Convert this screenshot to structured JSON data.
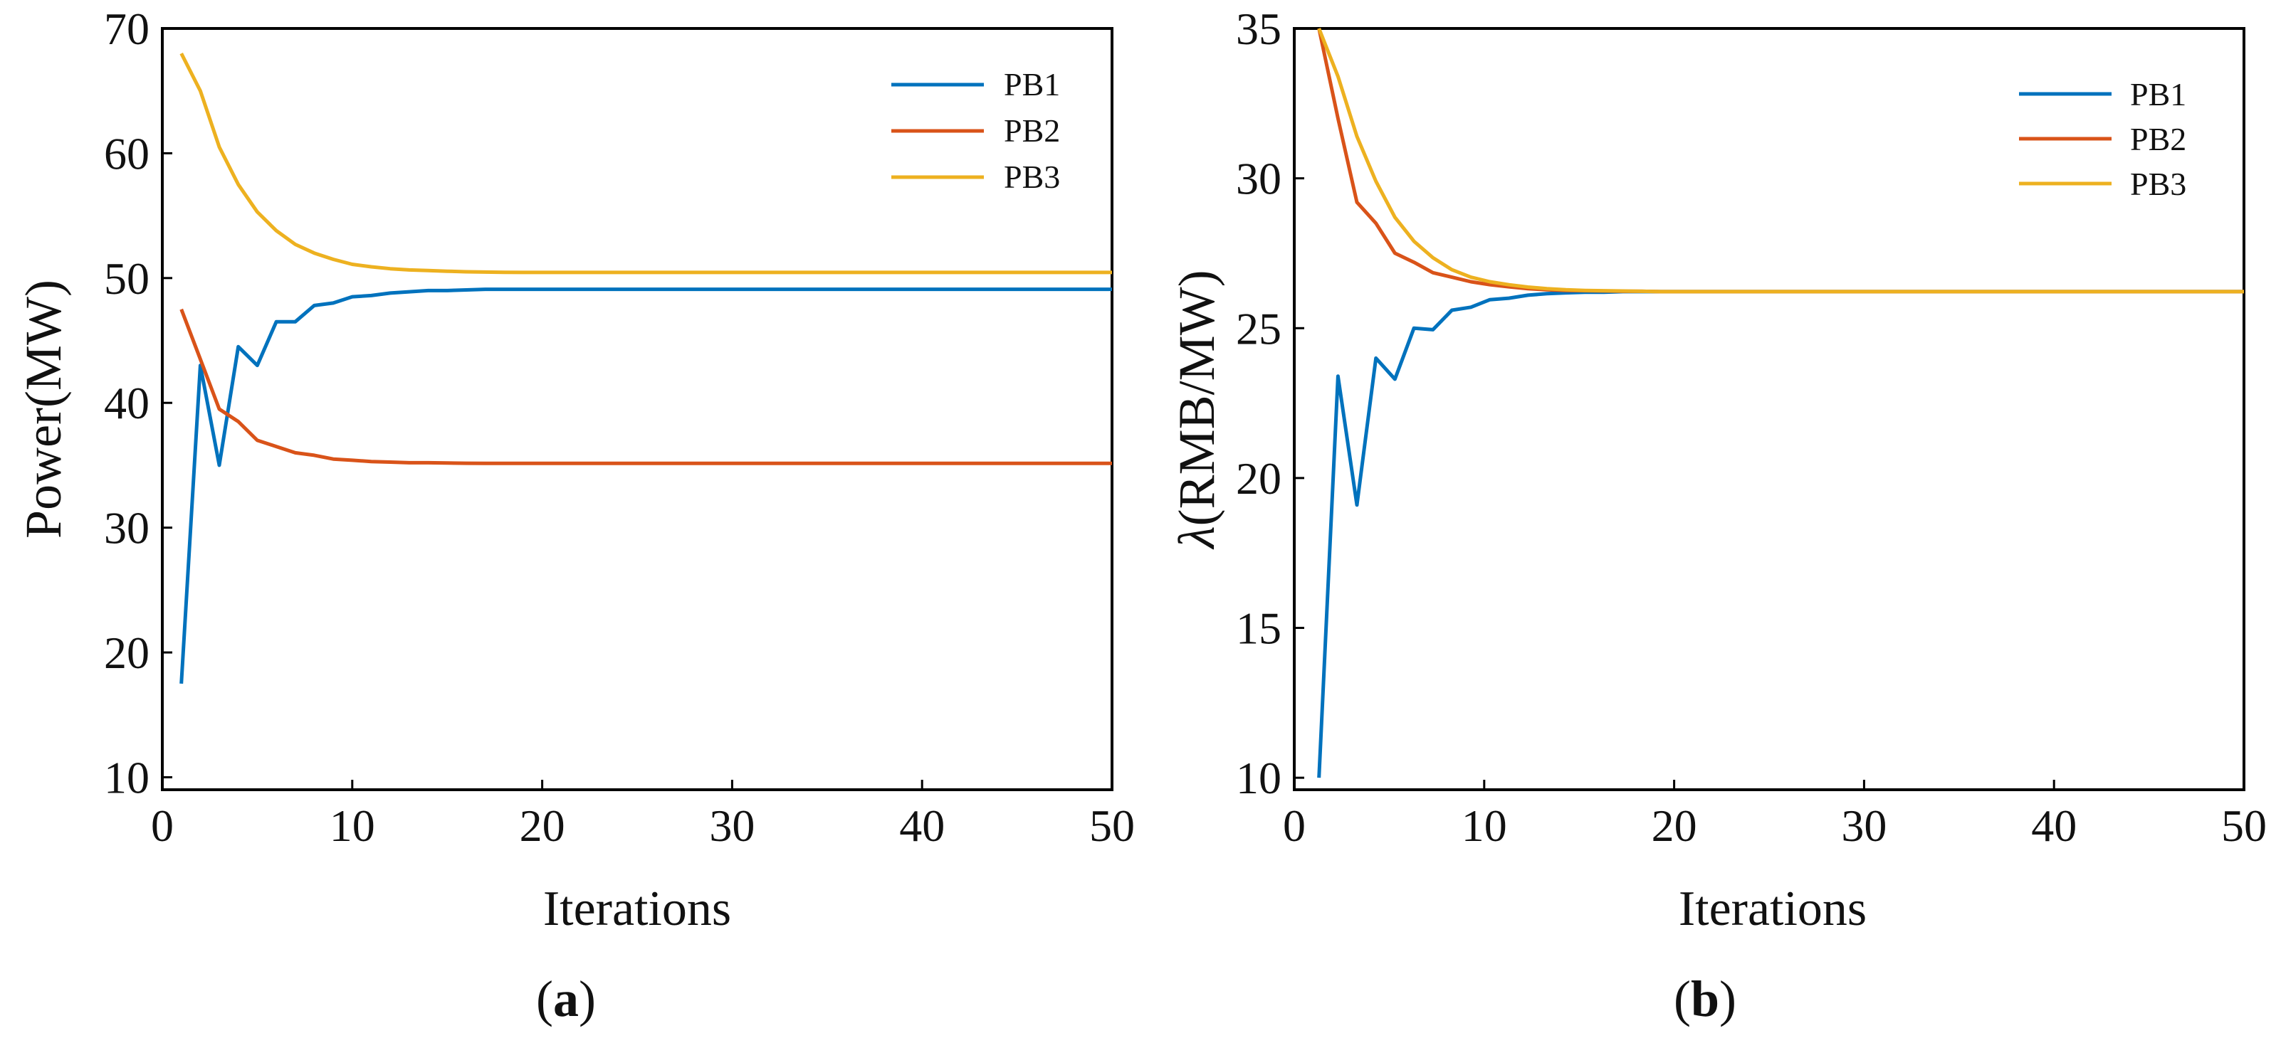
{
  "colors": {
    "series_1": "#0072BD",
    "series_2": "#D95319",
    "series_3": "#EDB120",
    "axis": "#000000"
  },
  "chart_data": [
    {
      "panel_label_paren_open": "(",
      "panel_label": "a",
      "panel_label_paren_close": ")",
      "type": "line",
      "title": "",
      "xlabel": "Iterations",
      "ylabel": "Power(MW)",
      "xlim": [
        0,
        50
      ],
      "ylim": [
        9,
        70
      ],
      "xticks": [
        0,
        10,
        20,
        30,
        40,
        50
      ],
      "yticks": [
        10,
        20,
        30,
        40,
        50,
        60,
        70
      ],
      "grid": false,
      "legend_position": "top-right",
      "series": [
        {
          "name": "PB1",
          "color": "#0072BD",
          "x": [
            1,
            2,
            3,
            4,
            5,
            6,
            7,
            8,
            9,
            10,
            11,
            12,
            13,
            14,
            15,
            16,
            17,
            18,
            19,
            20,
            30,
            40,
            50
          ],
          "y": [
            17.5,
            43,
            35,
            44.5,
            43,
            46.5,
            46.5,
            47.8,
            48,
            48.5,
            48.6,
            48.8,
            48.9,
            49,
            49,
            49.05,
            49.1,
            49.1,
            49.1,
            49.1,
            49.1,
            49.1,
            49.1
          ]
        },
        {
          "name": "PB2",
          "color": "#D95319",
          "x": [
            1,
            2,
            3,
            4,
            5,
            6,
            7,
            8,
            9,
            10,
            11,
            12,
            13,
            14,
            15,
            16,
            17,
            18,
            19,
            20,
            30,
            40,
            50
          ],
          "y": [
            47.5,
            43.5,
            39.5,
            38.5,
            37,
            36.5,
            36,
            35.8,
            35.5,
            35.4,
            35.3,
            35.25,
            35.2,
            35.2,
            35.18,
            35.16,
            35.15,
            35.15,
            35.15,
            35.15,
            35.15,
            35.15,
            35.15
          ]
        },
        {
          "name": "PB3",
          "color": "#EDB120",
          "x": [
            1,
            2,
            3,
            4,
            5,
            6,
            7,
            8,
            9,
            10,
            11,
            12,
            13,
            14,
            15,
            16,
            17,
            18,
            19,
            20,
            30,
            40,
            50
          ],
          "y": [
            68,
            65,
            60.5,
            57.5,
            55.3,
            53.8,
            52.7,
            52,
            51.5,
            51.1,
            50.9,
            50.75,
            50.65,
            50.6,
            50.55,
            50.5,
            50.48,
            50.46,
            50.45,
            50.45,
            50.45,
            50.45,
            50.45
          ]
        }
      ]
    },
    {
      "panel_label_paren_open": "(",
      "panel_label": "b",
      "panel_label_paren_close": ")",
      "type": "line",
      "title": "",
      "xlabel": "Iterations",
      "ylabel_symbol": "λ",
      "ylabel": "(RMB/MW)",
      "xlim": [
        0,
        50
      ],
      "ylim": [
        9.6,
        35
      ],
      "xticks": [
        0,
        10,
        20,
        30,
        40,
        50
      ],
      "yticks": [
        10,
        15,
        20,
        25,
        30,
        35
      ],
      "grid": false,
      "legend_position": "top-right",
      "series": [
        {
          "name": "PB1",
          "color": "#0072BD",
          "x": [
            1.3,
            2.3,
            3.3,
            4.3,
            5.3,
            6.3,
            7.3,
            8.3,
            9.3,
            10.3,
            11.3,
            12.3,
            13.3,
            14.3,
            15.3,
            16.3,
            17.3,
            18.3,
            19.3,
            20,
            30,
            40,
            50
          ],
          "y": [
            10,
            23.4,
            19.1,
            24,
            23.3,
            25,
            24.95,
            25.6,
            25.7,
            25.95,
            26,
            26.1,
            26.15,
            26.18,
            26.2,
            26.2,
            26.22,
            26.22,
            26.22,
            26.22,
            26.22,
            26.22,
            26.22
          ]
        },
        {
          "name": "PB2",
          "color": "#D95319",
          "x": [
            1.3,
            2.3,
            3.3,
            4.3,
            5.3,
            6.3,
            7.3,
            8.3,
            9.3,
            10.3,
            11.3,
            12.3,
            13.3,
            14.3,
            15.3,
            16.3,
            17.3,
            18.3,
            19.3,
            20,
            30,
            40,
            50
          ],
          "y": [
            35,
            32,
            29.2,
            28.5,
            27.5,
            27.2,
            26.85,
            26.7,
            26.55,
            26.45,
            26.38,
            26.32,
            26.28,
            26.26,
            26.25,
            26.24,
            26.23,
            26.23,
            26.22,
            26.22,
            26.22,
            26.22,
            26.22
          ]
        },
        {
          "name": "PB3",
          "color": "#EDB120",
          "x": [
            1.3,
            2.3,
            3.3,
            4.3,
            5.3,
            6.3,
            7.3,
            8.3,
            9.3,
            10.3,
            11.3,
            12.3,
            13.3,
            14.3,
            15.3,
            16.3,
            17.3,
            18.3,
            19.3,
            20,
            30,
            40,
            50
          ],
          "y": [
            35,
            33.4,
            31.4,
            29.9,
            28.7,
            27.9,
            27.35,
            26.95,
            26.7,
            26.55,
            26.45,
            26.37,
            26.32,
            26.28,
            26.26,
            26.25,
            26.24,
            26.23,
            26.22,
            26.22,
            26.22,
            26.22,
            26.22
          ]
        }
      ]
    }
  ]
}
